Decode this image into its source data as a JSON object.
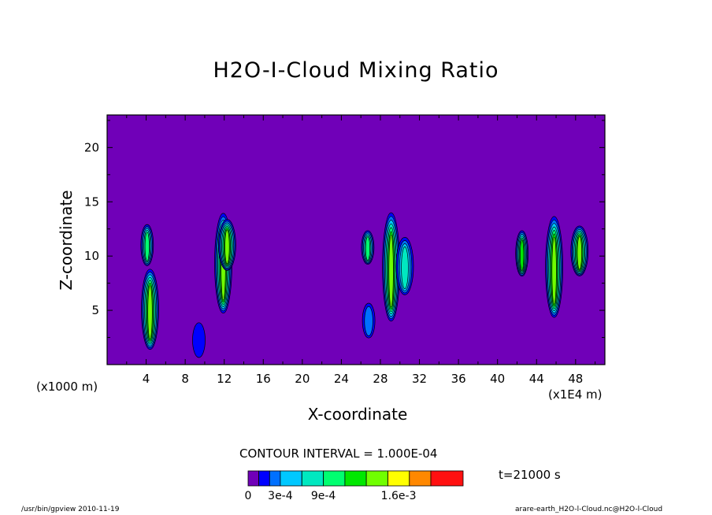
{
  "chart_data": {
    "type": "heatmap",
    "title": "H2O-I-Cloud Mixing Ratio",
    "xlabel": "X-coordinate",
    "ylabel": "Z-coordinate",
    "x_unit_label": "(x1E4 m)",
    "y_unit_label": "(x1000 m)",
    "xlim": [
      0,
      51
    ],
    "ylim": [
      0,
      23
    ],
    "x_ticks": [
      4,
      8,
      12,
      16,
      20,
      24,
      28,
      32,
      36,
      40,
      44,
      48
    ],
    "y_ticks": [
      5,
      10,
      15,
      20
    ],
    "contour_interval_text": "CONTOUR INTERVAL = 1.000E-04",
    "time_text": "t=21000 s",
    "background_color": "#7000b8",
    "colorbar": {
      "colors": [
        "#7000b8",
        "#0000ff",
        "#0070ff",
        "#00c8ff",
        "#00e8c0",
        "#00ff70",
        "#00e800",
        "#70ff00",
        "#ffff00",
        "#ff8800",
        "#ff1010",
        "#ff9a9a"
      ],
      "labels": [
        "0",
        "3e-4",
        "9e-4",
        "1.6e-3"
      ],
      "label_positions": [
        0,
        3,
        7,
        14
      ],
      "max_level": 20
    },
    "cloud_cells": [
      {
        "x": 4.1,
        "zmin": 8.8,
        "zmax": 12.6,
        "peak_level": 5
      },
      {
        "x": 4.4,
        "zmin": 0.8,
        "zmax": 8.2,
        "peak_level": 7
      },
      {
        "x": 9.4,
        "zmin": 0.4,
        "zmax": 3.6,
        "peak_level": 1
      },
      {
        "x": 11.9,
        "zmin": 4.0,
        "zmax": 13.2,
        "peak_level": 7
      },
      {
        "x": 12.3,
        "zmin": 8.3,
        "zmax": 13.0,
        "peak_level": 7
      },
      {
        "x": 26.8,
        "zmin": 2.2,
        "zmax": 5.4,
        "peak_level": 2
      },
      {
        "x": 26.7,
        "zmin": 9.0,
        "zmax": 12.1,
        "peak_level": 5
      },
      {
        "x": 29.1,
        "zmin": 3.2,
        "zmax": 13.2,
        "peak_level": 7
      },
      {
        "x": 30.5,
        "zmin": 6.0,
        "zmax": 11.3,
        "peak_level": 4
      },
      {
        "x": 42.5,
        "zmin": 7.8,
        "zmax": 12.0,
        "peak_level": 6
      },
      {
        "x": 45.8,
        "zmin": 3.6,
        "zmax": 12.9,
        "peak_level": 7
      },
      {
        "x": 48.4,
        "zmin": 7.8,
        "zmax": 12.4,
        "peak_level": 7
      }
    ]
  },
  "footer": {
    "left": "/usr/bin/gpview  2010-11-19",
    "right": "arare-earth_H2O-l-Cloud.nc@H2O-l-Cloud"
  }
}
